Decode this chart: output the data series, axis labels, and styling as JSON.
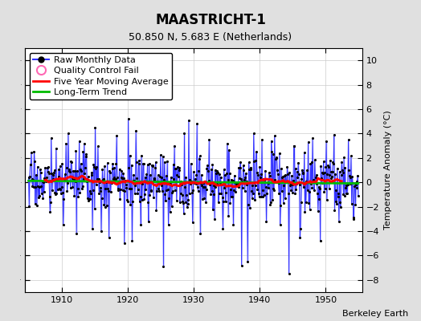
{
  "title": "MAASTRICHT-1",
  "subtitle": "50.850 N, 5.683 E (Netherlands)",
  "ylabel": "Temperature Anomaly (°C)",
  "credit": "Berkeley Earth",
  "ylim": [
    -9,
    11
  ],
  "yticks": [
    -8,
    -6,
    -4,
    -2,
    0,
    2,
    4,
    6,
    8,
    10
  ],
  "xlim": [
    1904.5,
    1955.5
  ],
  "xticks": [
    1910,
    1920,
    1930,
    1940,
    1950
  ],
  "line_color": "#3333ff",
  "line_fill_color": "#aaaaff",
  "dot_color": "#000000",
  "moving_avg_color": "#ff0000",
  "trend_color": "#00bb00",
  "bg_color": "#e0e0e0",
  "plot_bg_color": "#ffffff",
  "title_fontsize": 12,
  "subtitle_fontsize": 9,
  "ylabel_fontsize": 8,
  "tick_fontsize": 8,
  "legend_fontsize": 8,
  "credit_fontsize": 8
}
